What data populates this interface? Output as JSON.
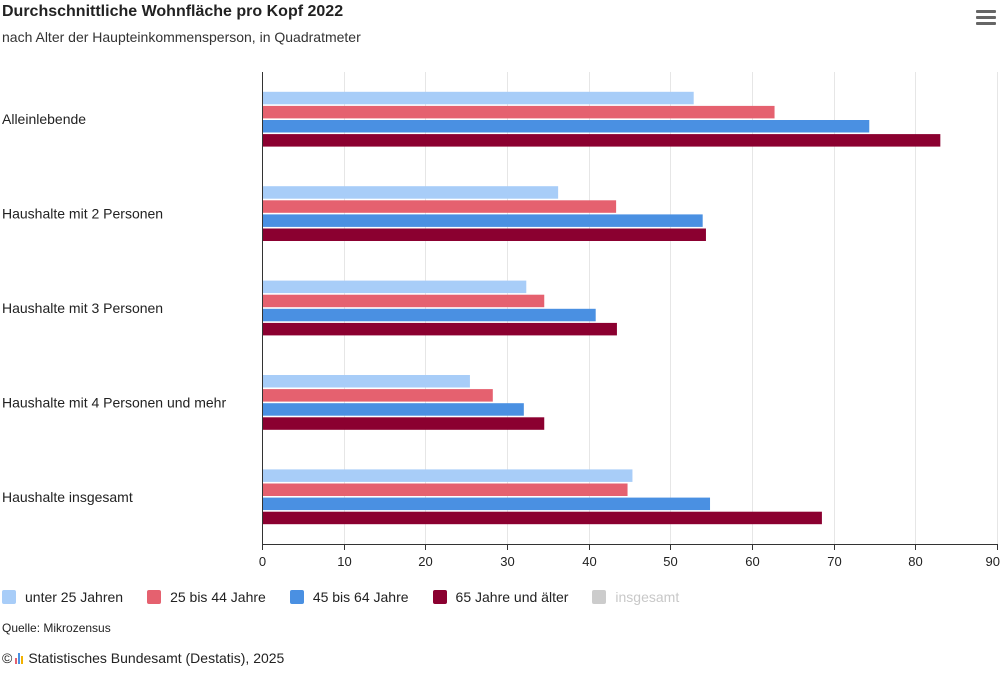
{
  "header": {
    "title": "Durchschnittliche Wohnfläche pro Kopf 2022",
    "subtitle": "nach Alter der Haupteinkommensperson, in Quadratmeter"
  },
  "menu": {
    "icon": "hamburger-menu-icon"
  },
  "chart_data": {
    "type": "bar",
    "orientation": "horizontal",
    "title": "Durchschnittliche Wohnfläche pro Kopf 2022",
    "subtitle": "nach Alter der Haupteinkommensperson, in Quadratmeter",
    "categories": [
      "Alleinlebende",
      "Haushalte mit 2 Personen",
      "Haushalte mit 3 Personen",
      "Haushalte mit 4 Personen und mehr",
      "Haushalte insgesamt"
    ],
    "series": [
      {
        "name": "unter 25 Jahren",
        "color": "#a8cdf8",
        "values": [
          52.8,
          36.2,
          32.3,
          25.4,
          45.3
        ]
      },
      {
        "name": "25 bis 44 Jahre",
        "color": "#e5616f",
        "values": [
          62.7,
          43.3,
          34.5,
          28.2,
          44.7
        ]
      },
      {
        "name": "45 bis 64 Jahre",
        "color": "#4a90e2",
        "values": [
          74.3,
          53.9,
          40.8,
          32.0,
          54.8
        ]
      },
      {
        "name": "65 Jahre und älter",
        "color": "#8b0030",
        "values": [
          83.0,
          54.3,
          43.4,
          34.5,
          68.5
        ]
      }
    ],
    "hidden_series": [
      {
        "name": "insgesamt",
        "color": "#cccccc"
      }
    ],
    "xlim": [
      0,
      90
    ],
    "xticks": [
      0,
      10,
      20,
      30,
      40,
      50,
      60,
      70,
      80,
      90
    ],
    "xlabel": "",
    "ylabel": "",
    "grid": true,
    "legend_position": "bottom-left"
  },
  "footer": {
    "source": "Quelle: Mikrozensus",
    "copyright_symbol": "©",
    "copyright_text": "Statistisches Bundesamt (Destatis), 2025",
    "logo_colors": [
      "#e5616f",
      "#4a90e2",
      "#f2b200"
    ]
  }
}
